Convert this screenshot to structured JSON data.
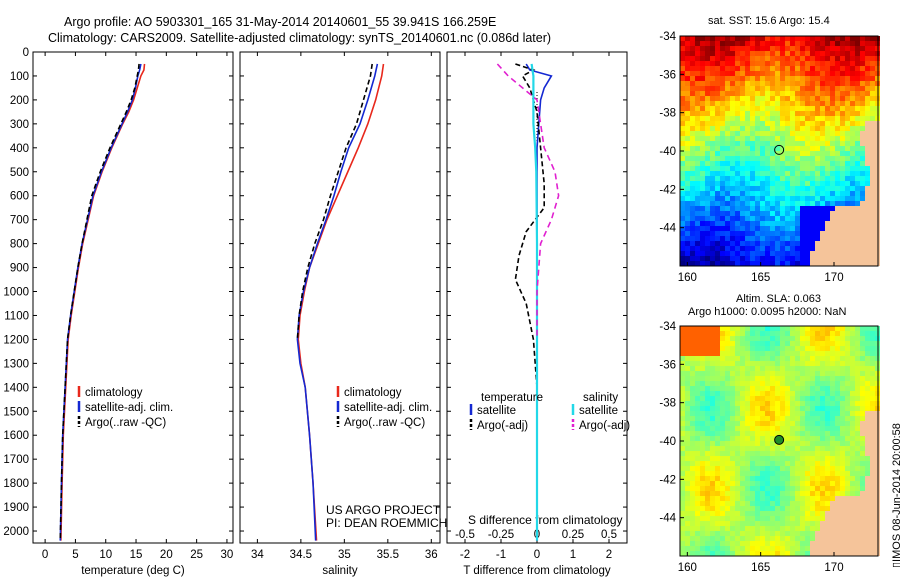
{
  "header": {
    "line1": "Argo profile: AO 5903301_165 31-May-2014 20140601_55 39.941S 166.259E",
    "line2": "Climatology: CARS2009. Satellite-adjusted climatology: synTS_20140601.nc (0.086d later)"
  },
  "map_top_title": "sat. SST: 15.6 Argo: 15.4",
  "map_bottom_title1": "Altim. SLA: 0.063",
  "map_bottom_title2": "Argo h1000: 0.0095 h2000: NaN",
  "stamp": "IMOS 08-Jun-2014 20:00:58",
  "project": {
    "line1": "US ARGO PROJECT",
    "line2": "PI: DEAN ROEMMICH"
  },
  "diff_xlabel_top": "S difference from climatology",
  "colors": {
    "climatology": "#e8281c",
    "satellite": "#1428d2",
    "argo": "#000000",
    "sat_salinity": "#22d8e8",
    "argo_adj_salinity": "#e020d0",
    "land": "#f5c49a",
    "circle": "#000000"
  },
  "chart_data": [
    {
      "type": "line",
      "xlabel": "temperature (deg C)",
      "ylabel": "",
      "xlim": [
        -2,
        31
      ],
      "ylim": [
        2050,
        0
      ],
      "xticks": [
        "0",
        "5",
        "10",
        "15",
        "20",
        "25",
        "30"
      ],
      "yticks": [
        "0",
        "100",
        "200",
        "300",
        "400",
        "500",
        "600",
        "700",
        "800",
        "900",
        "1000",
        "1100",
        "1200",
        "1300",
        "1400",
        "1500",
        "1600",
        "1700",
        "1800",
        "1900",
        "2000"
      ],
      "legend": [
        "climatology",
        "satellite-adj. clim.",
        "Argo(..raw -QC)"
      ],
      "series": [
        {
          "name": "climatology",
          "x": [
            16.4,
            16.3,
            15.8,
            15.2,
            14.6,
            13.8,
            12.8,
            11.9,
            11.0,
            10.2,
            9.4,
            8.7,
            8.0,
            7.1,
            6.2,
            5.5,
            4.9,
            4.3,
            3.8,
            3.4,
            3.0,
            2.8,
            2.6
          ],
          "y": [
            50,
            75,
            100,
            150,
            200,
            250,
            300,
            350,
            400,
            450,
            500,
            550,
            600,
            700,
            800,
            900,
            1000,
            1100,
            1200,
            1400,
            1600,
            1800,
            2040
          ]
        },
        {
          "name": "satellite-adj. clim.",
          "x": [
            15.8,
            15.6,
            15.3,
            14.9,
            14.4,
            13.6,
            12.7,
            11.8,
            10.9,
            10.1,
            9.3,
            8.6,
            7.9,
            7.0,
            6.1,
            5.4,
            4.8,
            4.2,
            3.7,
            3.3,
            2.9,
            2.7,
            2.5
          ],
          "y": [
            50,
            75,
            100,
            150,
            200,
            250,
            300,
            350,
            400,
            450,
            500,
            550,
            600,
            700,
            800,
            900,
            1000,
            1100,
            1200,
            1400,
            1600,
            1800,
            2040
          ]
        },
        {
          "name": "Argo(..raw -QC)",
          "x": [
            15.5,
            15.4,
            15.2,
            14.8,
            14.2,
            13.4,
            12.5,
            11.6,
            10.7,
            9.9,
            9.1,
            8.4,
            7.7,
            6.9,
            6.1,
            5.4,
            4.8,
            4.2,
            3.7,
            3.3,
            2.9,
            2.7,
            2.5
          ],
          "y": [
            50,
            75,
            100,
            150,
            200,
            250,
            300,
            350,
            400,
            450,
            500,
            550,
            600,
            700,
            800,
            900,
            1000,
            1100,
            1200,
            1400,
            1600,
            1800,
            2040
          ]
        }
      ]
    },
    {
      "type": "line",
      "xlabel": "salinity",
      "xlim": [
        33.8,
        36.1
      ],
      "ylim": [
        2050,
        0
      ],
      "xticks": [
        "34",
        "34.5",
        "35",
        "35.5",
        "36"
      ],
      "legend": [
        "climatology",
        "satellite-adj. clim.",
        "Argo(..raw -QC)"
      ],
      "series": [
        {
          "name": "climatology",
          "x": [
            35.45,
            35.43,
            35.36,
            35.27,
            35.16,
            35.04,
            34.92,
            34.8,
            34.7,
            34.6,
            34.54,
            34.49,
            34.47,
            34.5,
            34.55,
            34.6,
            34.64,
            34.68
          ],
          "y": [
            50,
            100,
            200,
            300,
            400,
            500,
            600,
            700,
            800,
            900,
            1000,
            1100,
            1200,
            1300,
            1400,
            1600,
            1800,
            2040
          ]
        },
        {
          "name": "satellite-adj. clim.",
          "x": [
            35.38,
            35.35,
            35.27,
            35.18,
            35.05,
            34.96,
            34.88,
            34.79,
            34.69,
            34.6,
            34.53,
            34.48,
            34.46,
            34.49,
            34.55,
            34.6,
            34.64,
            34.67
          ],
          "y": [
            50,
            100,
            200,
            300,
            400,
            500,
            600,
            700,
            800,
            900,
            1000,
            1100,
            1200,
            1300,
            1400,
            1600,
            1800,
            2040
          ]
        },
        {
          "name": "Argo(..raw -QC)",
          "x": [
            35.32,
            35.3,
            35.22,
            35.14,
            35.02,
            34.93,
            34.84,
            34.76,
            34.66,
            34.58,
            34.52,
            34.48,
            34.46
          ],
          "y": [
            50,
            100,
            200,
            300,
            400,
            500,
            600,
            700,
            800,
            900,
            1000,
            1100,
            1200
          ]
        }
      ]
    },
    {
      "type": "line",
      "xlabel": "T difference from climatology",
      "xlim": [
        -2.5,
        2.5
      ],
      "ylim": [
        2050,
        0
      ],
      "xticks_bottom": [
        "-2",
        "-1",
        "0",
        "1",
        "2"
      ],
      "xticks_top": [
        "-0.5",
        "-0.25",
        "0",
        "0.25",
        "0.5"
      ],
      "legend_headers": [
        "temperature",
        "salinity"
      ],
      "legend": [
        "satellite",
        "Argo(-adj)",
        "satellite",
        "Argo(-adj)"
      ],
      "series": [
        {
          "name": "satellite",
          "x": [
            -0.3,
            -0.2,
            0.4,
            0.2,
            0.1,
            0.05,
            0.0,
            0.0,
            0.0,
            0.0,
            0.0
          ],
          "y": [
            50,
            75,
            100,
            150,
            200,
            300,
            400,
            500,
            800,
            1500,
            2040
          ]
        },
        {
          "name": "Argo(-adj)",
          "x": [
            -0.6,
            -0.1,
            -0.4,
            -0.2,
            0.0,
            0.1,
            0.2,
            0.2,
            -0.3,
            -0.5,
            -0.6,
            -0.3,
            -0.1,
            0.0,
            0.0
          ],
          "y": [
            50,
            75,
            100,
            150,
            250,
            400,
            550,
            650,
            750,
            850,
            950,
            1050,
            1200,
            1400,
            1500
          ]
        },
        {
          "name": "satellite",
          "x": [
            -0.15,
            -0.1,
            -0.1,
            -0.1,
            -0.05,
            -0.02,
            0.0,
            0.0,
            0.0,
            0.0
          ],
          "y": [
            50,
            100,
            200,
            300,
            400,
            500,
            800,
            1200,
            1500,
            2040
          ]
        },
        {
          "name": "Argo(-adj)",
          "x": [
            -1.1,
            -0.8,
            0.0,
            0.1,
            0.2,
            0.5,
            0.6,
            0.4,
            0.1,
            0.0,
            0.0
          ],
          "y": [
            50,
            100,
            200,
            300,
            400,
            500,
            600,
            700,
            800,
            1000,
            1200
          ]
        }
      ]
    },
    {
      "type": "heatmap",
      "title": "sat. SST: 15.6 Argo: 15.4",
      "xlim": [
        159.5,
        173
      ],
      "ylim": [
        -46,
        -34
      ],
      "xticks": [
        "160",
        "165",
        "170"
      ],
      "yticks": [
        "-34",
        "-36",
        "-38",
        "-40",
        "-42",
        "-44"
      ],
      "marker": {
        "lon": 166.259,
        "lat": -39.941
      }
    },
    {
      "type": "heatmap",
      "title": "Altim. SLA: 0.063",
      "xlim": [
        159.5,
        173
      ],
      "ylim": [
        -46,
        -34
      ],
      "xticks": [
        "160",
        "165",
        "170"
      ],
      "yticks": [
        "-34",
        "-36",
        "-38",
        "-40",
        "-42",
        "-44"
      ],
      "marker": {
        "lon": 166.259,
        "lat": -39.941
      }
    }
  ]
}
